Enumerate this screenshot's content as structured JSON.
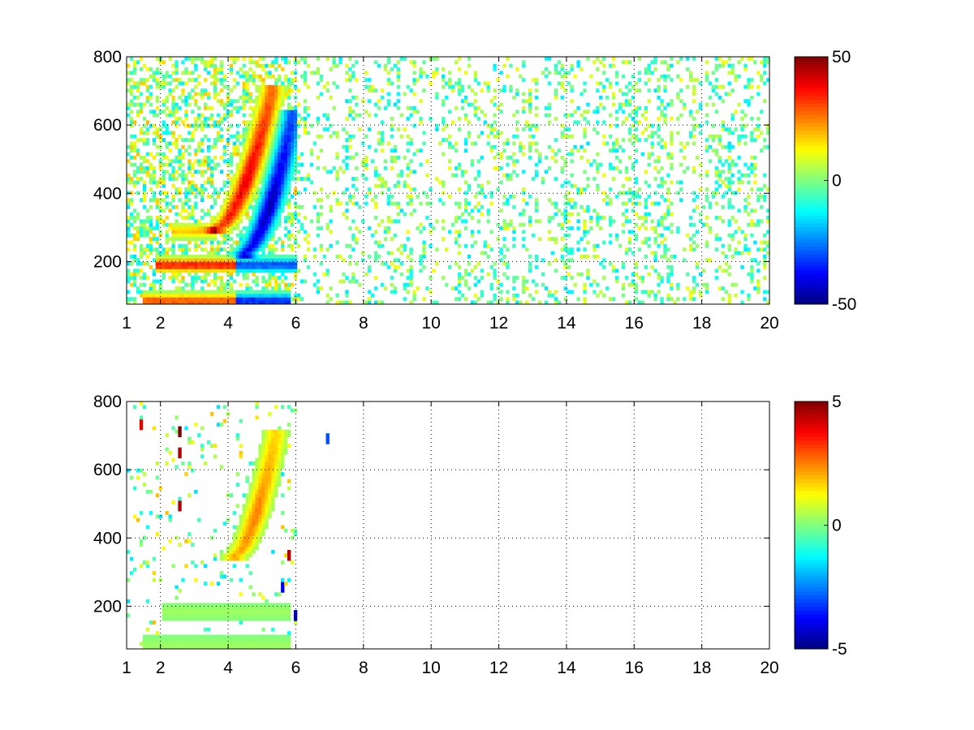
{
  "chart_data": [
    {
      "type": "heatmap",
      "title": "",
      "xlabel": "",
      "ylabel": "",
      "xlim": [
        1,
        20
      ],
      "ylim": [
        75,
        800
      ],
      "xticks": [
        1,
        2,
        4,
        6,
        8,
        10,
        12,
        14,
        16,
        18,
        20
      ],
      "yticks": [
        200,
        400,
        600,
        800
      ],
      "grid": true,
      "grid_style": "dotted",
      "colormap": "jet",
      "colorbar": {
        "clim": [
          -50,
          50
        ],
        "ticks": [
          -50,
          0,
          50
        ]
      },
      "features": [
        {
          "kind": "arc",
          "sign": "positive",
          "x_range": [
            3.7,
            5.3
          ],
          "y_range": [
            300,
            700
          ],
          "peak": 40
        },
        {
          "kind": "arc",
          "sign": "negative",
          "x_range": [
            4.5,
            5.9
          ],
          "y_range": [
            230,
            620
          ],
          "peak": -45
        },
        {
          "kind": "band",
          "sign": "positive",
          "x_range": [
            1.9,
            4.2
          ],
          "y": 190,
          "peak": 35
        },
        {
          "kind": "band",
          "sign": "negative",
          "x_range": [
            4.2,
            6.0
          ],
          "y": 190,
          "peak": -30
        },
        {
          "kind": "band",
          "sign": "positive",
          "x_range": [
            1.5,
            4.2
          ],
          "y": 85,
          "peak": 30
        },
        {
          "kind": "band",
          "sign": "negative",
          "x_range": [
            4.2,
            5.8
          ],
          "y": 85,
          "peak": -35
        },
        {
          "kind": "band",
          "sign": "positive",
          "x_range": [
            2.3,
            3.7
          ],
          "y": 290,
          "peak": 18
        },
        {
          "kind": "sparse",
          "x_range": [
            6.0,
            20.0
          ],
          "value_range": [
            -15,
            12
          ]
        }
      ]
    },
    {
      "type": "heatmap",
      "title": "",
      "xlabel": "",
      "ylabel": "",
      "xlim": [
        1,
        20
      ],
      "ylim": [
        75,
        800
      ],
      "xticks": [
        1,
        2,
        4,
        6,
        8,
        10,
        12,
        14,
        16,
        18,
        20
      ],
      "yticks": [
        200,
        400,
        600,
        800
      ],
      "grid": true,
      "grid_style": "dotted",
      "colormap": "jet",
      "colorbar": {
        "clim": [
          -5,
          5
        ],
        "ticks": [
          -5,
          0,
          5
        ]
      },
      "features": [
        {
          "kind": "arc",
          "sign": "positive",
          "x_range": [
            4.2,
            5.4
          ],
          "y_range": [
            350,
            700
          ],
          "peak": 2.5
        },
        {
          "kind": "band",
          "sign": "positive",
          "x_range": [
            2.0,
            5.8
          ],
          "y": 185,
          "peak": 0.3
        },
        {
          "kind": "band",
          "sign": "positive",
          "x_range": [
            1.5,
            5.8
          ],
          "y": 85,
          "peak": 0.3
        },
        {
          "kind": "spots",
          "points": [
            [
              2.55,
              700,
              5
            ],
            [
              2.6,
              640,
              4.5
            ],
            [
              2.6,
              480,
              4.5
            ],
            [
              5.75,
              340,
              4.5
            ],
            [
              5.65,
              250,
              -4
            ],
            [
              5.95,
              165,
              -4.5
            ],
            [
              6.95,
              680,
              -3
            ],
            [
              1.4,
              720,
              4
            ]
          ]
        }
      ]
    }
  ]
}
